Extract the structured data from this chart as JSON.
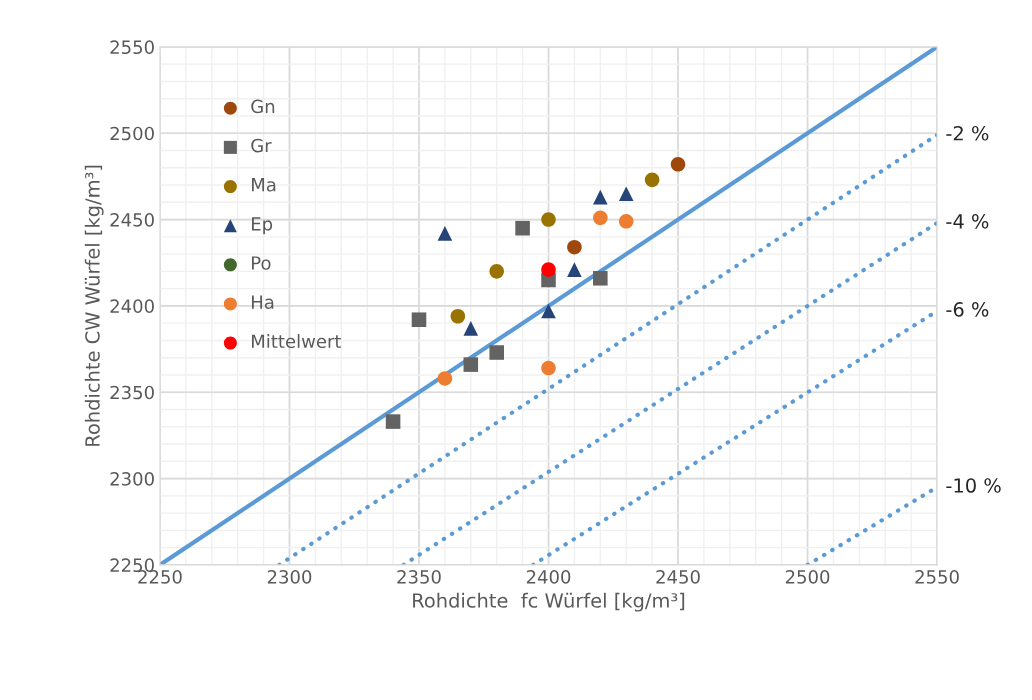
{
  "chart_data": {
    "type": "scatter",
    "xlabel": "Rohdichte  fc Würfel [kg/m³]",
    "ylabel": "Rohdichte CW Würfel [kg/m³]",
    "xlim": [
      2250,
      2550
    ],
    "ylim": [
      2250,
      2550
    ],
    "xticks": [
      2250,
      2300,
      2350,
      2400,
      2450,
      2500,
      2550
    ],
    "yticks": [
      2250,
      2300,
      2350,
      2400,
      2450,
      2500,
      2550
    ],
    "grid": true,
    "legend": "top left",
    "series": [
      {
        "name": "Gn",
        "color": "#9e480e",
        "marker": "circle",
        "x": [
          2410,
          2450
        ],
        "values": [
          2434,
          2482
        ]
      },
      {
        "name": "Gr",
        "color": "#636363",
        "marker": "square",
        "x": [
          2340,
          2350,
          2370,
          2380,
          2390,
          2400,
          2420
        ],
        "values": [
          2333,
          2392,
          2366,
          2373,
          2445,
          2415,
          2416
        ]
      },
      {
        "name": "Ma",
        "color": "#997300",
        "marker": "circle",
        "x": [
          2365,
          2380,
          2400,
          2420,
          2440
        ],
        "values": [
          2394,
          2420,
          2450,
          null,
          2473
        ]
      },
      {
        "name": "Ep",
        "color": "#264478",
        "marker": "triangle",
        "x": [
          2360,
          2370,
          2400,
          2410,
          2420,
          2430
        ],
        "values": [
          2442,
          2387,
          2397,
          2421,
          2463,
          2465
        ]
      },
      {
        "name": "Po",
        "color": "#43682b",
        "marker": "circle"
      },
      {
        "name": "Ha",
        "color": "#ed7d31",
        "marker": "circle",
        "x": [
          2360,
          2400,
          2420,
          2430
        ],
        "values": [
          2358,
          2364,
          2451,
          2449
        ]
      },
      {
        "name": "Mittelwert",
        "color": "#ff0000",
        "marker": "circle",
        "x": [
          2400
        ],
        "values": [
          2421
        ]
      },
      {
        "type": "line",
        "color": "#5b9bd5",
        "line_style": "solid",
        "x": [
          2250,
          2550
        ],
        "values": [
          2250,
          2550
        ]
      },
      {
        "type": "line",
        "name": "-2 %",
        "color": "#5b9bd5",
        "line_style": "dotted",
        "x": [
          2296,
          2550
        ],
        "values": [
          2250,
          2499
        ]
      },
      {
        "type": "line",
        "name": "-4 %",
        "color": "#5b9bd5",
        "line_style": "dotted",
        "x": [
          2344,
          2550
        ],
        "values": [
          2250,
          2448
        ]
      },
      {
        "type": "line",
        "name": "-6 %",
        "color": "#5b9bd5",
        "line_style": "dotted",
        "x": [
          2394,
          2550
        ],
        "values": [
          2250,
          2397
        ]
      },
      {
        "type": "line",
        "name": "-10 %",
        "color": "#5b9bd5",
        "line_style": "dotted",
        "x": [
          2500,
          2550
        ],
        "values": [
          2250,
          2295
        ]
      }
    ]
  }
}
